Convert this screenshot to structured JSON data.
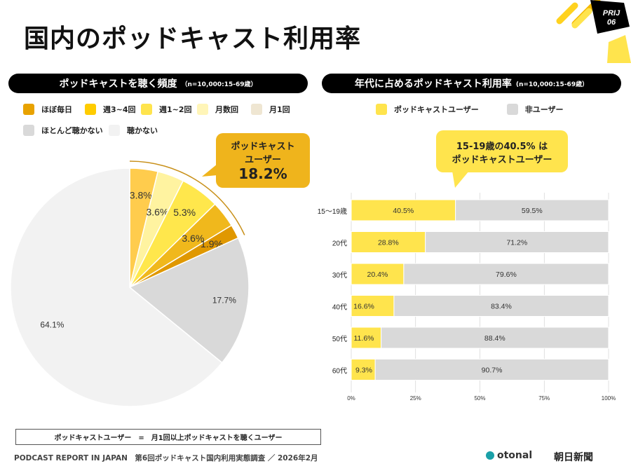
{
  "header": {
    "title": "国内のポッドキャスト利用率",
    "badge_line1": "PRIJ",
    "badge_line2": "06"
  },
  "left": {
    "heading": "ポッドキャストを聴く頻度",
    "heading_note": "（n=10,000:15-69歳）",
    "legend": [
      {
        "label": "ほぼ毎日",
        "color": "#E8A200"
      },
      {
        "label": "週3~4回",
        "color": "#FFCC00"
      },
      {
        "label": "週1~2回",
        "color": "#FFE44D"
      },
      {
        "label": "月数回",
        "color": "#FFF5B8"
      },
      {
        "label": "月1回",
        "color": "#EFE6D2"
      },
      {
        "label": "ほとんど聴かない",
        "color": "#D9D9D9"
      },
      {
        "label": "聴かない",
        "color": "#F2F2F2"
      }
    ],
    "callout": {
      "line1": "ポッドキャスト",
      "line2": "ユーザー",
      "value": "18.2%"
    }
  },
  "right": {
    "heading": "年代に占めるポッドキャスト利用率",
    "heading_note": "(n=10,000:15-69歳）",
    "legend": [
      {
        "label": "ポッドキャストユーザー",
        "color": "#FFE44D"
      },
      {
        "label": "非ユーザー",
        "color": "#D9D9D9"
      }
    ],
    "callout": {
      "line1": "15-19歳の40.5% は",
      "line2": "ポッドキャストユーザー"
    }
  },
  "chart_data": [
    {
      "type": "pie",
      "start": "12 o'clock",
      "direction": "clockwise",
      "slices": [
        {
          "label": "3.8%",
          "value": 3.8,
          "color": "#FFCC4D"
        },
        {
          "label": "3.6%",
          "value": 3.6,
          "color": "#FFF3A0"
        },
        {
          "label": "5.3%",
          "value": 5.3,
          "color": "#FFE74C"
        },
        {
          "label": "3.6%",
          "value": 3.6,
          "color": "#F0B81C"
        },
        {
          "label": "1.9%",
          "value": 1.9,
          "color": "#E09800"
        },
        {
          "label": "17.7%",
          "value": 17.7,
          "color": "#D9D9D9"
        },
        {
          "label": "64.1%",
          "value": 64.1,
          "color": "#F2F2F2"
        }
      ]
    },
    {
      "type": "bar",
      "orientation": "horizontal",
      "stacked": true,
      "categories": [
        "15〜19歳",
        "20代",
        "30代",
        "40代",
        "50代",
        "60代"
      ],
      "series": [
        {
          "name": "ポッドキャストユーザー",
          "values": [
            40.5,
            28.8,
            20.4,
            16.6,
            11.6,
            9.3
          ],
          "color": "#FFE44D"
        },
        {
          "name": "非ユーザー",
          "values": [
            59.5,
            71.2,
            79.6,
            83.4,
            88.4,
            90.7
          ],
          "color": "#D9D9D9"
        }
      ],
      "xlim": [
        0,
        100
      ],
      "xticks": [
        "0%",
        "25%",
        "50%",
        "75%",
        "100%"
      ],
      "grid": true
    }
  ],
  "footer": {
    "definition": "ポッドキャストユーザー　=　月1回以上ポッドキャストを聴くユーザー",
    "source": "PODCAST REPORT IN JAPAN　第6回ポッドキャスト国内利用実態調査 ／ 2026年2月",
    "logo1": "otonal",
    "logo2": "朝日新聞"
  }
}
